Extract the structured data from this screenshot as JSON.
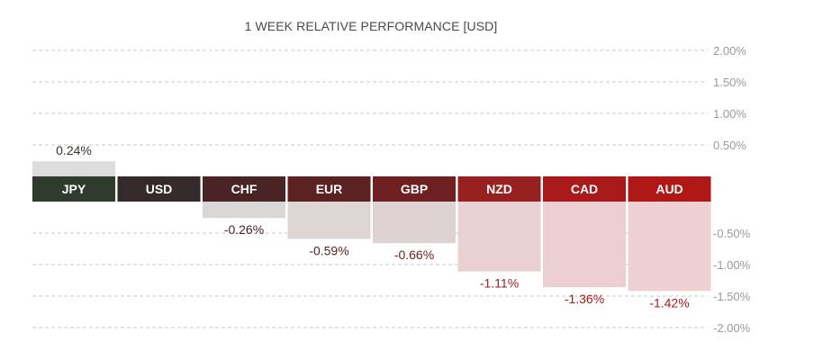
{
  "chart_data": {
    "type": "bar",
    "title": "1 WEEK RELATIVE PERFORMANCE  [USD]",
    "categories": [
      "JPY",
      "USD",
      "CHF",
      "EUR",
      "GBP",
      "NZD",
      "CAD",
      "AUD"
    ],
    "values": [
      0.24,
      0,
      -0.26,
      -0.59,
      -0.66,
      -1.11,
      -1.36,
      -1.42
    ],
    "value_labels": [
      "0.24%",
      "",
      "-0.26%",
      "-0.59%",
      "-0.66%",
      "-1.11%",
      "-1.36%",
      "-1.42%"
    ],
    "header_colors": [
      "#2f3b2c",
      "#352a2a",
      "#4a2424",
      "#5c2222",
      "#6e2020",
      "#972020",
      "#aa1a1a",
      "#b01818"
    ],
    "bar_colors": [
      "#dcdcdc",
      "#dcdcdc",
      "#dad6d6",
      "#ddd4d4",
      "#ddd3d3",
      "#ead0d2",
      "#eccfd2",
      "#eecfd2"
    ],
    "label_colors": [
      "#2f3b2c",
      "#352a2a",
      "#4a2424",
      "#5c2222",
      "#6e2020",
      "#972020",
      "#aa1a1a",
      "#b01818"
    ],
    "ylim": [
      -2.0,
      2.0
    ],
    "yticks": [
      {
        "value": 2.0,
        "label": "2.00%"
      },
      {
        "value": 1.5,
        "label": "1.50%"
      },
      {
        "value": 1.0,
        "label": "1.00%"
      },
      {
        "value": 0.5,
        "label": "0.50%"
      },
      {
        "value": -0.5,
        "label": "-0.50%"
      },
      {
        "value": -1.0,
        "label": "-1.00%"
      },
      {
        "value": -1.5,
        "label": "-1.50%"
      },
      {
        "value": -2.0,
        "label": "-2.00%"
      }
    ],
    "grid": true,
    "grid_style": "dashed"
  }
}
